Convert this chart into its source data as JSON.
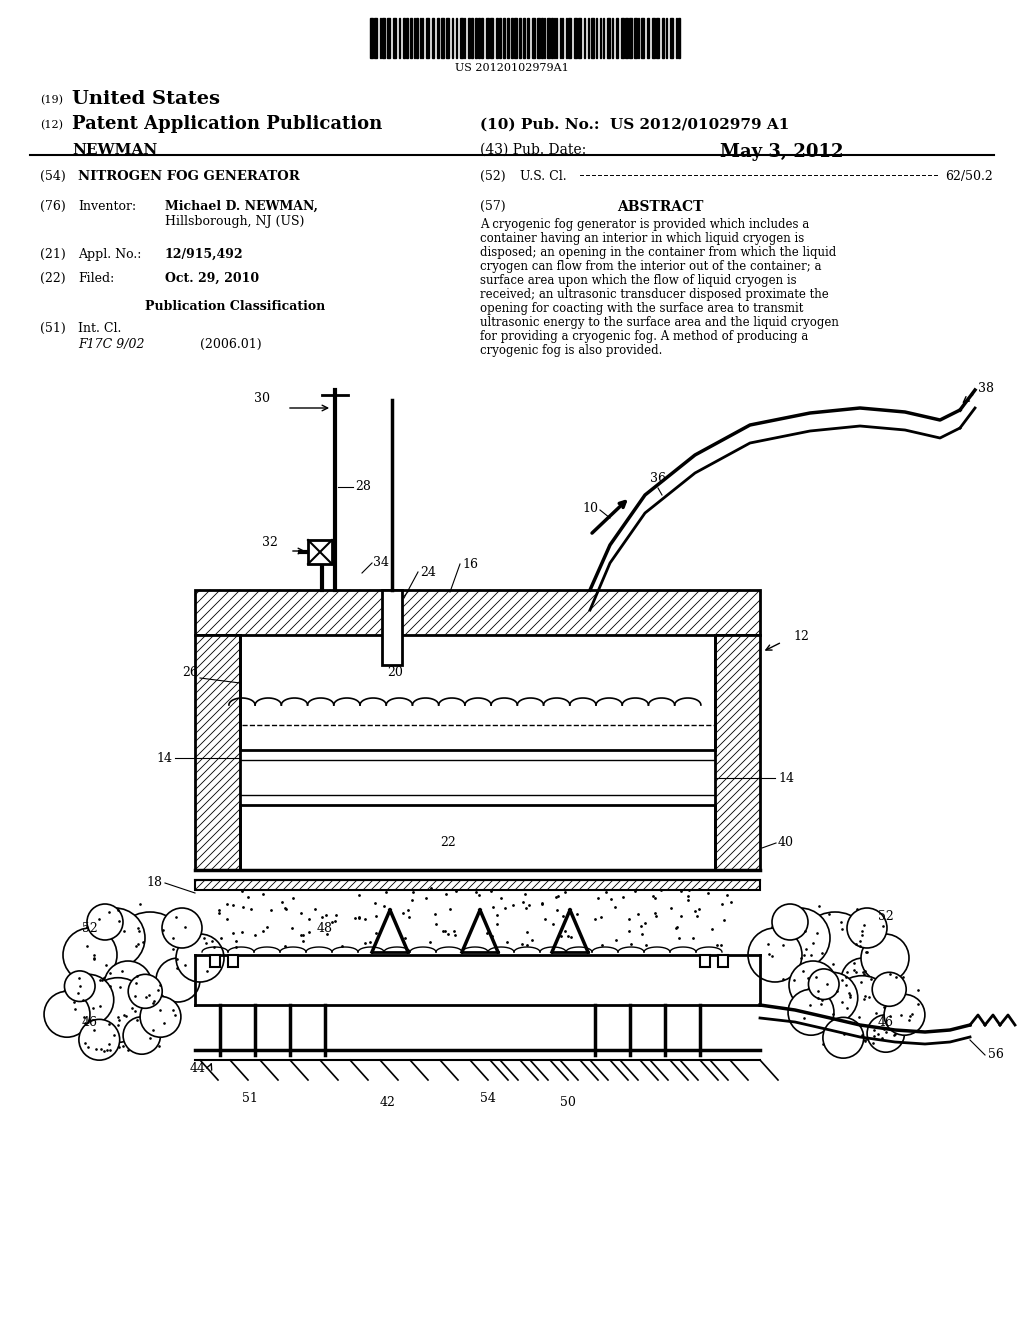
{
  "title": "NITROGEN FOG GENERATOR",
  "background_color": "#ffffff",
  "barcode_text": "US 20120102979A1",
  "header": {
    "country_num": "(19)",
    "country": "United States",
    "type_num": "(12)",
    "type": "Patent Application Publication",
    "pub_num_label": "(10) Pub. No.:",
    "pub_num": "US 2012/0102979 A1",
    "inventor_label": "NEWMAN",
    "pub_date_label": "(43) Pub. Date:",
    "pub_date": "May 3, 2012"
  },
  "fields": {
    "title_num": "(54)",
    "title_val": "NITROGEN FOG GENERATOR",
    "inv_num": "(76)",
    "inv_label": "Inventor:",
    "inv_name": "Michael D. NEWMAN,",
    "inv_addr": "Hillsborough, NJ (US)",
    "appl_num": "(21)",
    "appl_label": "Appl. No.:",
    "appl_val": "12/915,492",
    "filed_num": "(22)",
    "filed_label": "Filed:",
    "filed_val": "Oct. 29, 2010",
    "pub_class_header": "Publication Classification",
    "int_cl_num": "(51)",
    "int_cl_label": "Int. Cl.",
    "int_cl_val": "F17C 9/02",
    "int_cl_year": "(2006.01)",
    "us_cl_num": "(52)",
    "us_cl_label": "U.S. Cl.",
    "us_cl_val": "62/50.2",
    "abstract_num": "(57)",
    "abstract_header": "ABSTRACT",
    "abstract_text": "A cryogenic fog generator is provided which includes a container having an interior in which liquid cryogen is disposed; an opening in the container from which the liquid cryogen can flow from the interior out of the container; a surface area upon which the flow of liquid cryogen is received; an ultrasonic transducer disposed proximate the opening for coacting with the surface area to transmit ultrasonic energy to the surface area and the liquid cryogen for providing a cryogenic fog. A method of producing a cryogenic fog is also provided."
  }
}
